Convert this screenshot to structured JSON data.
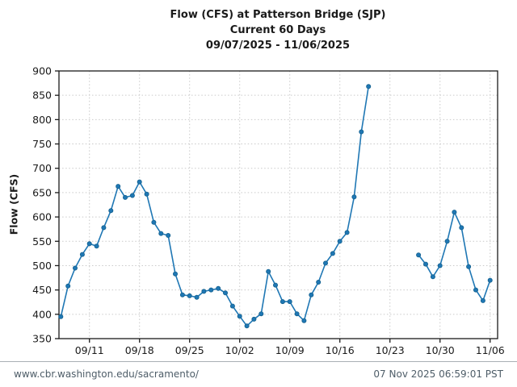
{
  "title": {
    "line1": "Flow (CFS) at Patterson Bridge (SJP)",
    "line2": "Current 60 Days",
    "line3": "09/07/2025 - 11/06/2025"
  },
  "footer": {
    "url": "www.cbr.washington.edu/sacramento/",
    "timestamp": "07 Nov 2025 06:59:01 PST"
  },
  "chart_data": {
    "type": "line",
    "title": "Flow (CFS) at Patterson Bridge (SJP)",
    "subtitle": "Current 60 Days",
    "date_range": "09/07/2025 - 11/06/2025",
    "ylabel": "Flow (CFS)",
    "ylim": [
      350,
      900
    ],
    "yticks": [
      350,
      400,
      450,
      500,
      550,
      600,
      650,
      700,
      750,
      800,
      850,
      900
    ],
    "xticks": [
      {
        "day": 4,
        "label": "09/11"
      },
      {
        "day": 11,
        "label": "09/18"
      },
      {
        "day": 18,
        "label": "09/25"
      },
      {
        "day": 25,
        "label": "10/02"
      },
      {
        "day": 32,
        "label": "10/09"
      },
      {
        "day": 39,
        "label": "10/16"
      },
      {
        "day": 46,
        "label": "10/23"
      },
      {
        "day": 53,
        "label": "10/30"
      },
      {
        "day": 60,
        "label": "11/06"
      }
    ],
    "x_dates": [
      "09/07",
      "09/08",
      "09/09",
      "09/10",
      "09/11",
      "09/12",
      "09/13",
      "09/14",
      "09/15",
      "09/16",
      "09/17",
      "09/18",
      "09/19",
      "09/20",
      "09/21",
      "09/22",
      "09/23",
      "09/24",
      "09/25",
      "09/26",
      "09/27",
      "09/28",
      "09/29",
      "09/30",
      "10/01",
      "10/02",
      "10/03",
      "10/04",
      "10/05",
      "10/06",
      "10/07",
      "10/08",
      "10/09",
      "10/10",
      "10/11",
      "10/12",
      "10/13",
      "10/14",
      "10/15",
      "10/16",
      "10/17",
      "10/18",
      "10/19",
      "10/20",
      "10/21",
      "10/22",
      "10/23",
      "10/24",
      "10/25",
      "10/26",
      "10/27",
      "10/28",
      "10/29",
      "10/30",
      "10/31",
      "11/01",
      "11/02",
      "11/03",
      "11/04",
      "11/05",
      "11/06"
    ],
    "series": [
      {
        "name": "Flow (CFS)",
        "values": [
          395,
          458,
          495,
          523,
          545,
          540,
          578,
          613,
          663,
          640,
          644,
          672,
          647,
          589,
          566,
          562,
          483,
          440,
          438,
          435,
          447,
          450,
          453,
          444,
          417,
          396,
          376,
          390,
          401,
          488,
          460,
          426,
          426,
          401,
          387,
          440,
          466,
          505,
          525,
          550,
          568,
          641,
          775,
          868,
          null,
          null,
          null,
          null,
          null,
          null,
          522,
          503,
          477,
          500,
          550,
          610,
          578,
          498,
          450,
          428,
          470
        ]
      }
    ],
    "grid": "dotted",
    "legend_position": "none",
    "line_color": "#1f77b4",
    "marker_edge_color": "#14618e",
    "grid_color": "#c9c9c9",
    "axis_color": "#1a1a1a",
    "text_color": "#1a1a1a"
  }
}
